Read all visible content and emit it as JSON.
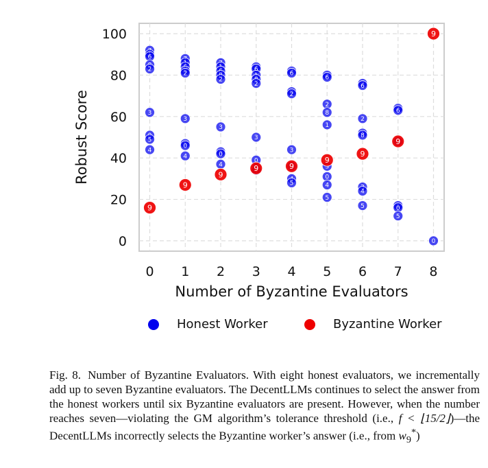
{
  "chart_data": {
    "type": "scatter",
    "xlabel": "Number of Byzantine Evaluators",
    "ylabel": "Robust Score",
    "x_ticks": [
      0,
      1,
      2,
      3,
      4,
      5,
      6,
      7,
      8
    ],
    "y_ticks": [
      0,
      20,
      40,
      60,
      80,
      100
    ],
    "xlim": [
      -0.3,
      8.3
    ],
    "ylim": [
      -5,
      105
    ],
    "grid": true,
    "legend_placement": "below",
    "series": [
      {
        "name": "Honest Worker",
        "color": "#0000ee",
        "points": [
          {
            "x": 0,
            "y": 92,
            "label": "7"
          },
          {
            "x": 0,
            "y": 90,
            "label": "1"
          },
          {
            "x": 0,
            "y": 89,
            "label": "6"
          },
          {
            "x": 0,
            "y": 85,
            "label": "8"
          },
          {
            "x": 0,
            "y": 83,
            "label": "2"
          },
          {
            "x": 0,
            "y": 62,
            "label": "3"
          },
          {
            "x": 0,
            "y": 51,
            "label": "0"
          },
          {
            "x": 0,
            "y": 49,
            "label": "5"
          },
          {
            "x": 0,
            "y": 44,
            "label": "4"
          },
          {
            "x": 1,
            "y": 88,
            "label": "7"
          },
          {
            "x": 1,
            "y": 86,
            "label": "1"
          },
          {
            "x": 1,
            "y": 84,
            "label": "6"
          },
          {
            "x": 1,
            "y": 82,
            "label": "8"
          },
          {
            "x": 1,
            "y": 81,
            "label": "2"
          },
          {
            "x": 1,
            "y": 59,
            "label": "3"
          },
          {
            "x": 1,
            "y": 47,
            "label": "5"
          },
          {
            "x": 1,
            "y": 46,
            "label": "0"
          },
          {
            "x": 1,
            "y": 41,
            "label": "4"
          },
          {
            "x": 2,
            "y": 86,
            "label": "7"
          },
          {
            "x": 2,
            "y": 84,
            "label": "1"
          },
          {
            "x": 2,
            "y": 82,
            "label": "6"
          },
          {
            "x": 2,
            "y": 80,
            "label": "8"
          },
          {
            "x": 2,
            "y": 78,
            "label": "2"
          },
          {
            "x": 2,
            "y": 55,
            "label": "3"
          },
          {
            "x": 2,
            "y": 43,
            "label": "5"
          },
          {
            "x": 2,
            "y": 42,
            "label": "0"
          },
          {
            "x": 2,
            "y": 37,
            "label": "4"
          },
          {
            "x": 3,
            "y": 84,
            "label": "7"
          },
          {
            "x": 3,
            "y": 83,
            "label": "6"
          },
          {
            "x": 3,
            "y": 80,
            "label": "1"
          },
          {
            "x": 3,
            "y": 78,
            "label": "8"
          },
          {
            "x": 3,
            "y": 76,
            "label": "2"
          },
          {
            "x": 3,
            "y": 50,
            "label": "3"
          },
          {
            "x": 3,
            "y": 39,
            "label": "0"
          },
          {
            "x": 3,
            "y": 35,
            "label": "5"
          },
          {
            "x": 3,
            "y": 34,
            "label": "4"
          },
          {
            "x": 4,
            "y": 82,
            "label": "7"
          },
          {
            "x": 4,
            "y": 81,
            "label": "6"
          },
          {
            "x": 4,
            "y": 72,
            "label": "8"
          },
          {
            "x": 4,
            "y": 71,
            "label": "2"
          },
          {
            "x": 4,
            "y": 44,
            "label": "3"
          },
          {
            "x": 4,
            "y": 36,
            "label": "0"
          },
          {
            "x": 4,
            "y": 30,
            "label": "4"
          },
          {
            "x": 4,
            "y": 28,
            "label": "5"
          },
          {
            "x": 5,
            "y": 80,
            "label": "7"
          },
          {
            "x": 5,
            "y": 79,
            "label": "6"
          },
          {
            "x": 5,
            "y": 66,
            "label": "2"
          },
          {
            "x": 5,
            "y": 62,
            "label": "8"
          },
          {
            "x": 5,
            "y": 56,
            "label": "1"
          },
          {
            "x": 5,
            "y": 36,
            "label": "3"
          },
          {
            "x": 5,
            "y": 31,
            "label": "0"
          },
          {
            "x": 5,
            "y": 27,
            "label": "4"
          },
          {
            "x": 5,
            "y": 21,
            "label": "5"
          },
          {
            "x": 6,
            "y": 76,
            "label": "7"
          },
          {
            "x": 6,
            "y": 75,
            "label": "6"
          },
          {
            "x": 6,
            "y": 59,
            "label": "2"
          },
          {
            "x": 6,
            "y": 52,
            "label": "1"
          },
          {
            "x": 6,
            "y": 51,
            "label": "8"
          },
          {
            "x": 6,
            "y": 26,
            "label": "3"
          },
          {
            "x": 6,
            "y": 24,
            "label": "4"
          },
          {
            "x": 6,
            "y": 17,
            "label": "5"
          },
          {
            "x": 7,
            "y": 64,
            "label": "7"
          },
          {
            "x": 7,
            "y": 63,
            "label": "6"
          },
          {
            "x": 7,
            "y": 48,
            "label": "3"
          },
          {
            "x": 7,
            "y": 17,
            "label": "1"
          },
          {
            "x": 7,
            "y": 16,
            "label": "0"
          },
          {
            "x": 7,
            "y": 12,
            "label": "5"
          },
          {
            "x": 8,
            "y": 0,
            "label": "0"
          }
        ]
      },
      {
        "name": "Byzantine Worker",
        "color": "#ee0000",
        "points": [
          {
            "x": 0,
            "y": 16,
            "label": "9"
          },
          {
            "x": 1,
            "y": 27,
            "label": "9"
          },
          {
            "x": 2,
            "y": 32,
            "label": "9"
          },
          {
            "x": 3,
            "y": 35,
            "label": "9"
          },
          {
            "x": 4,
            "y": 36,
            "label": "9"
          },
          {
            "x": 5,
            "y": 39,
            "label": "9"
          },
          {
            "x": 6,
            "y": 42,
            "label": "9"
          },
          {
            "x": 7,
            "y": 48,
            "label": "9"
          },
          {
            "x": 8,
            "y": 100,
            "label": "9"
          }
        ]
      }
    ]
  },
  "legend": {
    "honest_label": "Honest Worker",
    "byzantine_label": "Byzantine Worker",
    "honest_color": "#0000ee",
    "byzantine_color": "#ee0000"
  },
  "caption": {
    "fig_label": "Fig. 8.",
    "text_1": "Number of Byzantine Evaluators. With eight honest evaluators, we incrementally add up to seven Byzantine evaluators. The DecentLLMs continues to select the answer from the honest workers until six Byzantine evaluators are present. However, when the number reaches seven—violating the GM algorithm’s tolerance threshold (i.e., ",
    "math_1": "f < ⌊15/2⌋",
    "text_2": ")—the DecentLLMs incorrectly selects the Byzantine worker’s answer (i.e., from ",
    "math_2": "w",
    "math_2_sub": "9",
    "math_2_sup": "*",
    "text_3": ")"
  }
}
